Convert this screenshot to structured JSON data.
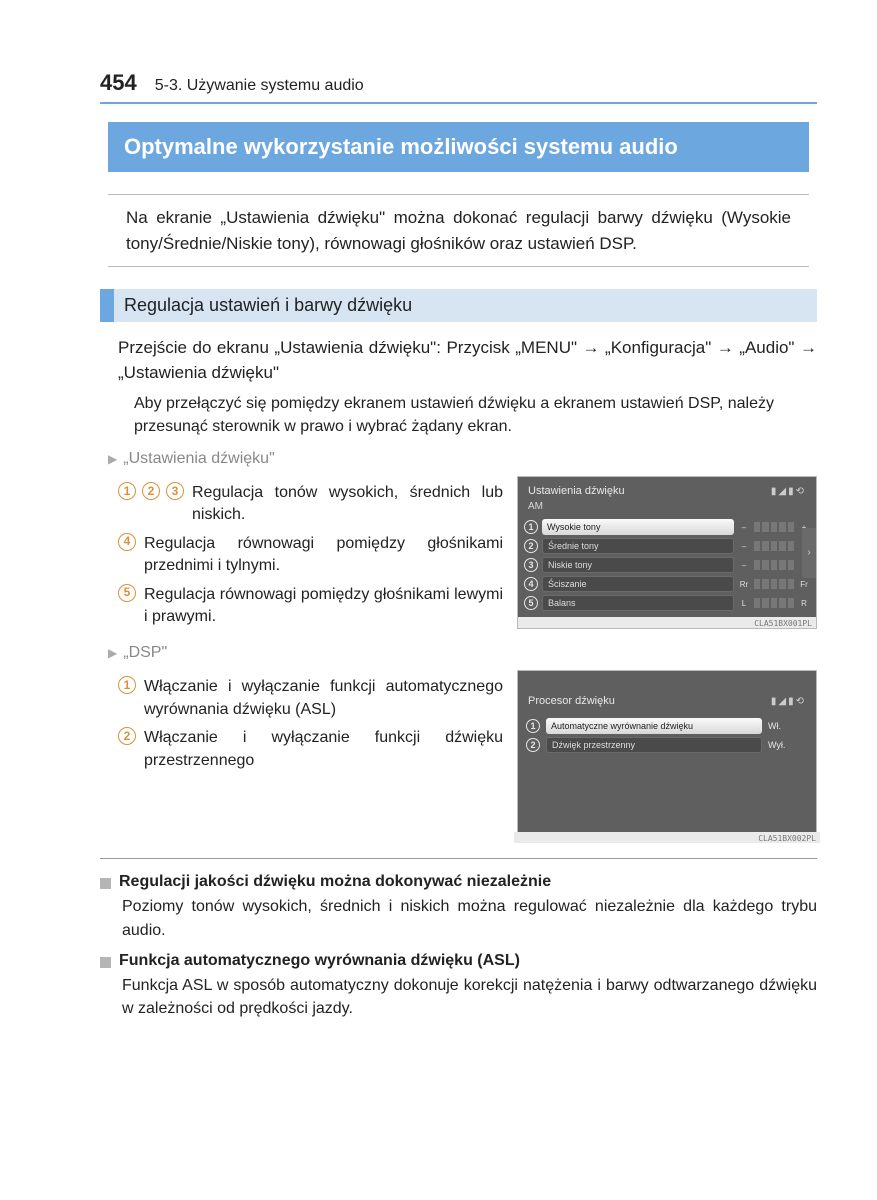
{
  "header": {
    "page_number": "454",
    "section_path": "5-3. Używanie systemu audio"
  },
  "title": "Optymalne wykorzystanie możliwości systemu audio",
  "intro": "Na ekranie „Ustawienia dźwięku\" można dokonać regulacji barwy dźwięku (Wysokie tony/Średnie/Niskie tony), równowagi głośników oraz ustawień DSP.",
  "subhead1": "Regulacja ustawień i barwy dźwięku",
  "nav_text": "Przejście do ekranu „Ustawienia dźwięku\": Przycisk „MENU\" → „Konfiguracja\" → „Audio\" → „Ustawienia dźwięku\"",
  "nav_note": "Aby przełączyć się pomiędzy ekranem ustawień dźwięku a ekranem ustawień DSP, należy przesunąć sterownik w prawo i wybrać żądany ekran.",
  "group1": {
    "heading": "„Ustawienia dźwięku\"",
    "items": [
      {
        "nums": [
          "1",
          "2",
          "3"
        ],
        "text": "Regulacja tonów wysokich, średnich lub niskich."
      },
      {
        "nums": [
          "4"
        ],
        "text": "Regulacja równowagi pomiędzy głośnikami przednimi i tylnymi."
      },
      {
        "nums": [
          "5"
        ],
        "text": "Regulacja równowagi pomiędzy głośnikami lewymi i prawymi."
      }
    ]
  },
  "group2": {
    "heading": "„DSP\"",
    "items": [
      {
        "nums": [
          "1"
        ],
        "text": "Włączanie i wyłączanie funkcji automatycznego wyrównania dźwięku (ASL)"
      },
      {
        "nums": [
          "2"
        ],
        "text": "Włączanie i wyłączanie funkcji dźwięku przestrzennego"
      }
    ]
  },
  "screen1": {
    "title": "Ustawienia dźwięku",
    "subtitle": "AM",
    "rows": [
      {
        "n": "1",
        "label": "Wysokie tony",
        "active": true,
        "left": "–",
        "right": "+"
      },
      {
        "n": "2",
        "label": "Średnie tony",
        "active": false,
        "left": "–",
        "right": "+"
      },
      {
        "n": "3",
        "label": "Niskie tony",
        "active": false,
        "left": "–",
        "right": "+"
      },
      {
        "n": "4",
        "label": "Ściszanie",
        "active": false,
        "left": "Rr",
        "right": "Fr"
      },
      {
        "n": "5",
        "label": "Balans",
        "active": false,
        "left": "L",
        "right": "R"
      }
    ],
    "code": "CLA51BX001PL"
  },
  "screen2": {
    "title": "Procesor dźwięku",
    "rows": [
      {
        "n": "1",
        "label": "Automatyczne wyrównanie dźwięku",
        "active": true,
        "value": "Wł."
      },
      {
        "n": "2",
        "label": "Dźwięk przestrzenny",
        "active": false,
        "value": "Wył."
      }
    ],
    "code": "CLA51BX002PL"
  },
  "footnotes": [
    {
      "title": "Regulacji jakości dźwięku można dokonywać niezależnie",
      "body": "Poziomy tonów wysokich, średnich i niskich można regulować niezależnie dla każdego trybu audio."
    },
    {
      "title": "Funkcja automatycznego wyrównania dźwięku (ASL)",
      "body": "Funkcja ASL w sposób automatyczny dokonuje korekcji natężenia i barwy odtwarzanego dźwięku w zależności od prędkości jazdy."
    }
  ],
  "colors": {
    "accent": "#6ca7df",
    "subhead_bg": "#d7e5f3",
    "circle": "#d9923a"
  }
}
